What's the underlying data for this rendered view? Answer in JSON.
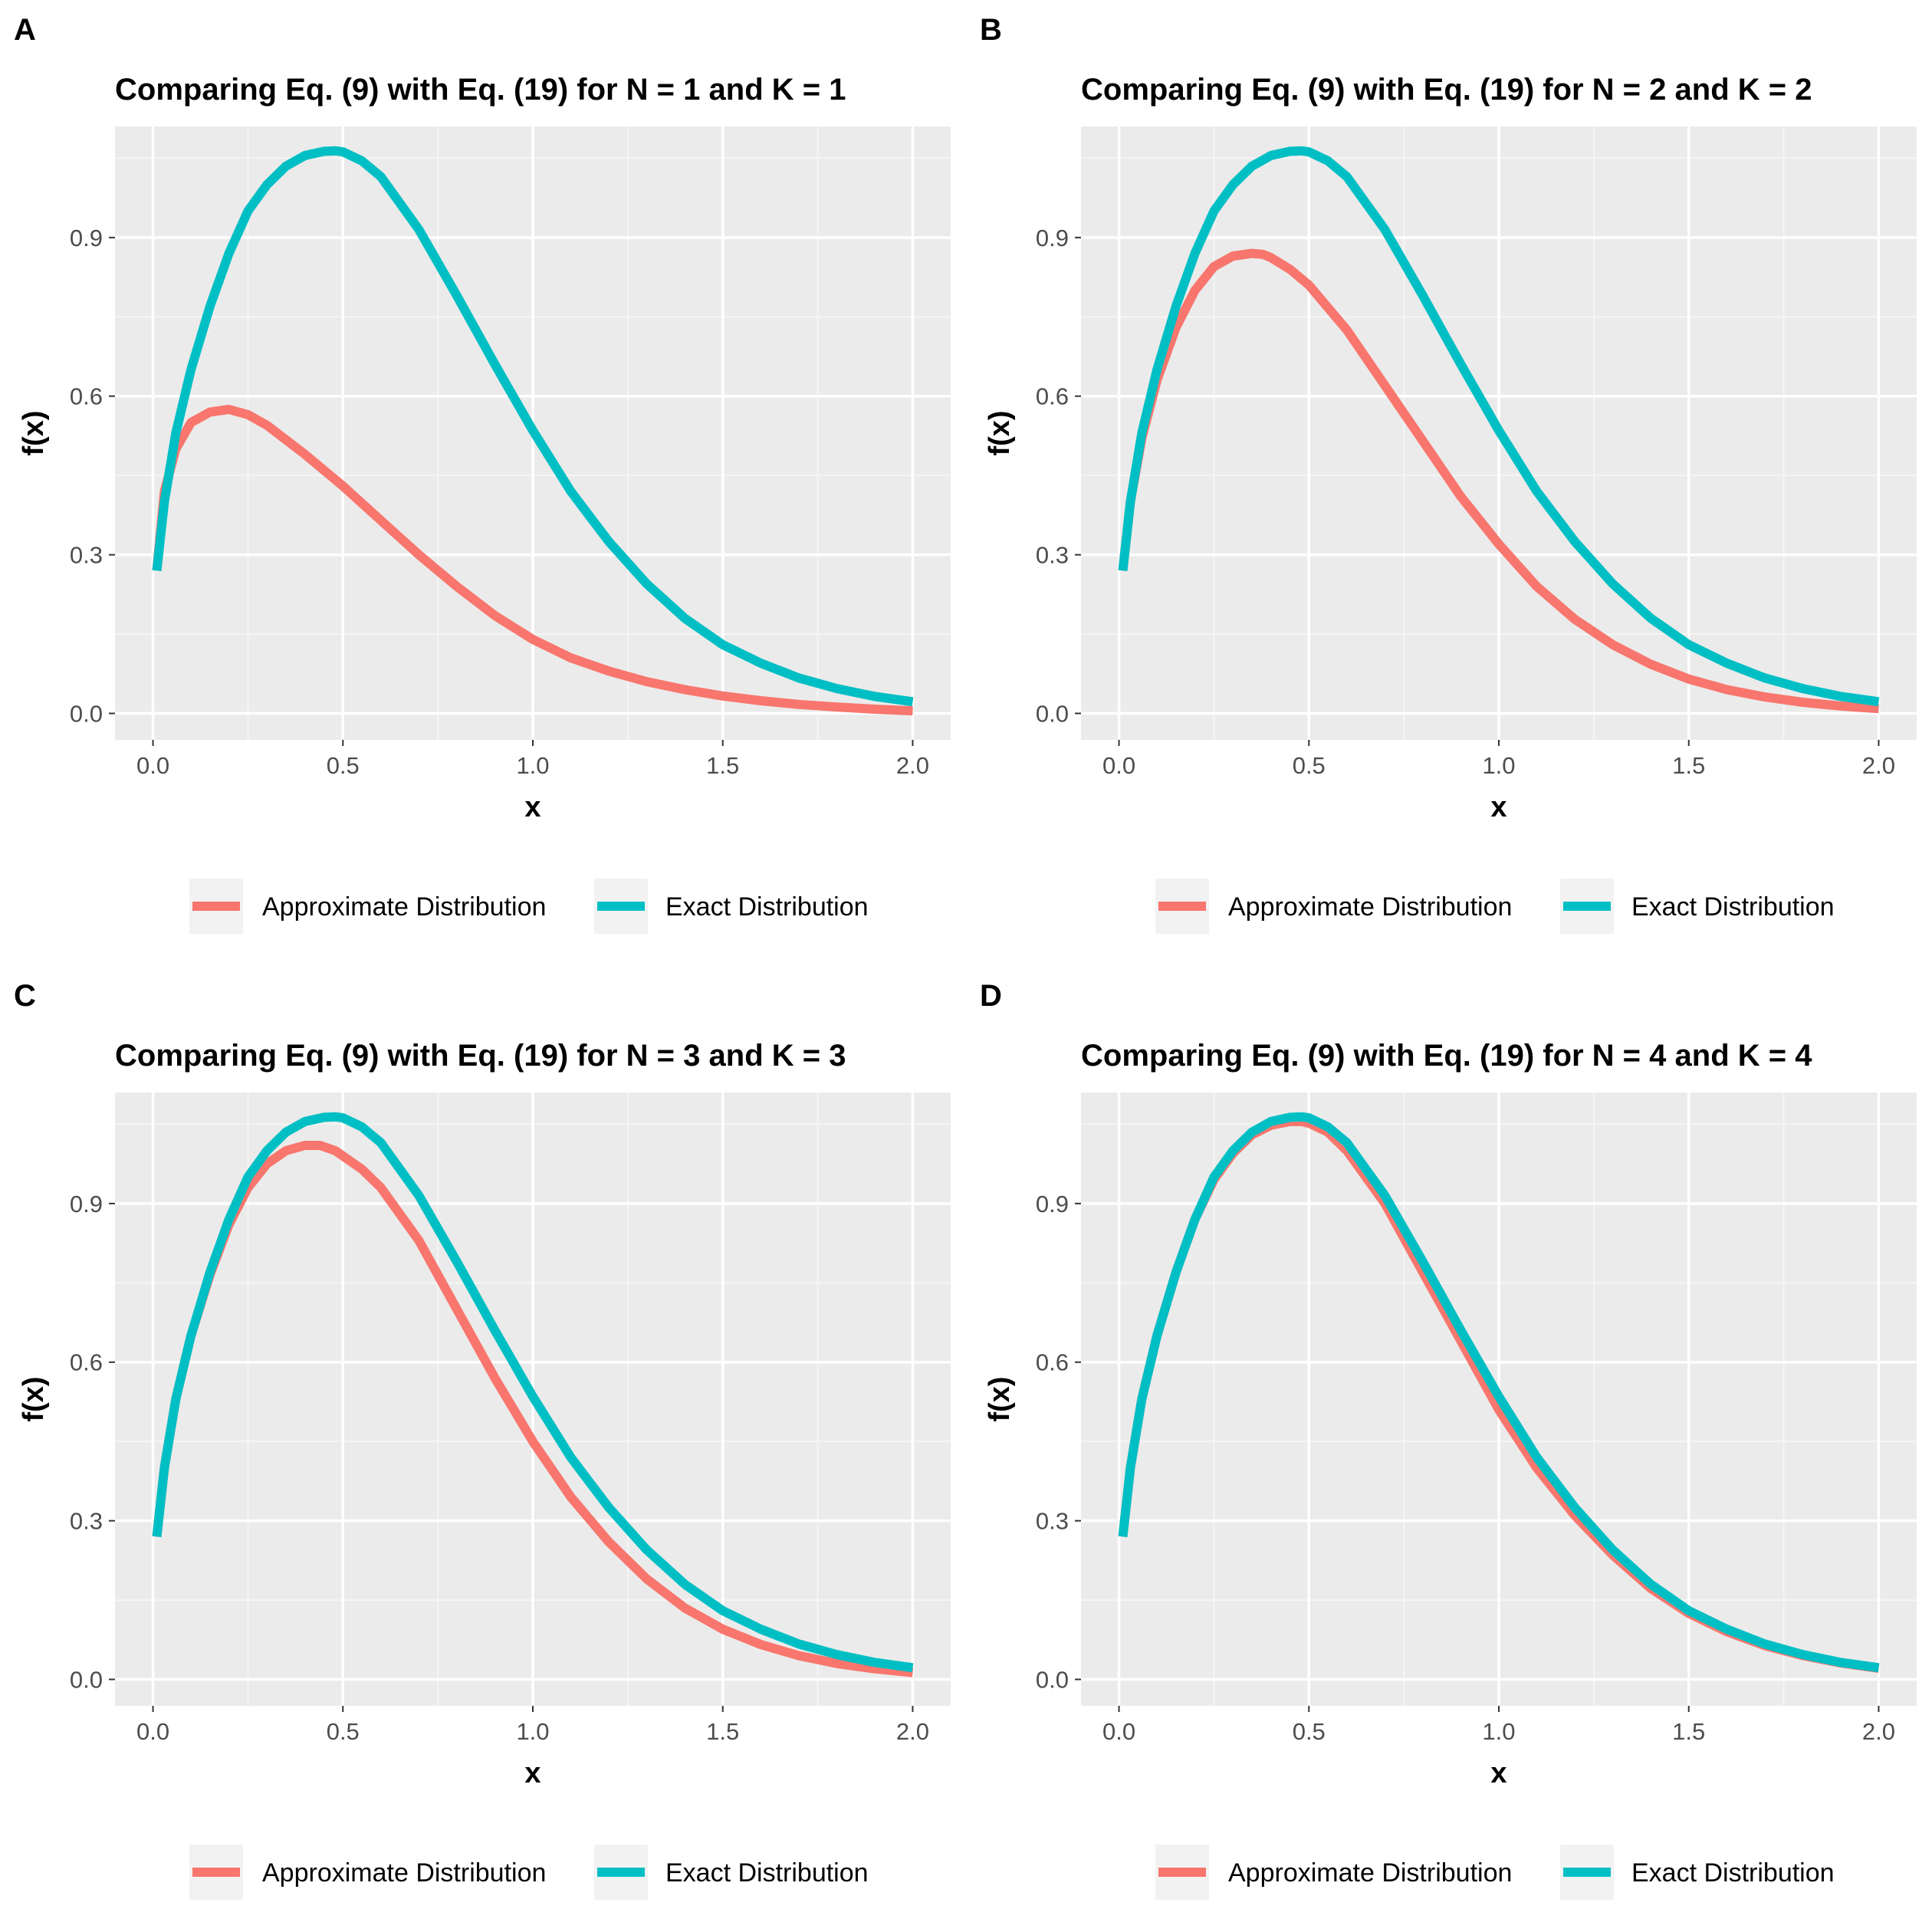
{
  "colors": {
    "approximate": "#F8766D",
    "exact": "#00BFC4",
    "panel_bg": "#EBEBEB",
    "grid_major": "#FFFFFF",
    "grid_minor": "#F5F5F5",
    "tick": "#333333",
    "tick_text": "#4D4D4D"
  },
  "legend": {
    "items": [
      {
        "key": "approximate",
        "label": "Approximate Distribution"
      },
      {
        "key": "exact",
        "label": "Exact Distribution"
      }
    ],
    "position": "bottom"
  },
  "chart_data": [
    {
      "panel": "A",
      "type": "line",
      "title": "Comparing Eq. (9) with Eq. (19) for N = 1 and K = 1",
      "xlabel": "x",
      "ylabel": "f(x)",
      "xlim": [
        -0.1,
        2.1
      ],
      "ylim": [
        -0.05,
        1.11
      ],
      "xticks": [
        0.0,
        0.5,
        1.0,
        1.5,
        2.0
      ],
      "xtick_labels": [
        "0.0",
        "0.5",
        "1.0",
        "1.5",
        "2.0"
      ],
      "yticks": [
        0.0,
        0.3,
        0.6,
        0.9
      ],
      "ytick_labels": [
        "0.0",
        "0.3",
        "0.6",
        "0.9"
      ],
      "grid": true,
      "series": [
        {
          "key": "approximate",
          "x": [
            0.01,
            0.03,
            0.06,
            0.1,
            0.15,
            0.2,
            0.25,
            0.3,
            0.4,
            0.5,
            0.6,
            0.7,
            0.8,
            0.9,
            1.0,
            1.1,
            1.2,
            1.3,
            1.4,
            1.5,
            1.6,
            1.7,
            1.8,
            1.9,
            2.0
          ],
          "y": [
            0.27,
            0.42,
            0.5,
            0.55,
            0.57,
            0.575,
            0.565,
            0.545,
            0.49,
            0.43,
            0.365,
            0.3,
            0.24,
            0.185,
            0.14,
            0.105,
            0.08,
            0.06,
            0.045,
            0.033,
            0.024,
            0.017,
            0.012,
            0.008,
            0.005
          ]
        },
        {
          "key": "exact",
          "x": [
            0.01,
            0.03,
            0.06,
            0.1,
            0.15,
            0.2,
            0.25,
            0.3,
            0.35,
            0.4,
            0.45,
            0.48,
            0.5,
            0.55,
            0.6,
            0.7,
            0.8,
            0.9,
            1.0,
            1.1,
            1.2,
            1.3,
            1.4,
            1.5,
            1.6,
            1.7,
            1.8,
            1.9,
            2.0
          ],
          "y": [
            0.27,
            0.4,
            0.53,
            0.65,
            0.77,
            0.87,
            0.95,
            1.0,
            1.035,
            1.055,
            1.063,
            1.064,
            1.062,
            1.045,
            1.015,
            0.915,
            0.79,
            0.66,
            0.535,
            0.42,
            0.325,
            0.245,
            0.18,
            0.13,
            0.095,
            0.067,
            0.047,
            0.032,
            0.022
          ]
        }
      ]
    },
    {
      "panel": "B",
      "type": "line",
      "title": "Comparing Eq. (9) with Eq. (19) for N = 2 and K = 2",
      "xlabel": "x",
      "ylabel": "f(x)",
      "xlim": [
        -0.1,
        2.1
      ],
      "ylim": [
        -0.05,
        1.11
      ],
      "xticks": [
        0.0,
        0.5,
        1.0,
        1.5,
        2.0
      ],
      "xtick_labels": [
        "0.0",
        "0.5",
        "1.0",
        "1.5",
        "2.0"
      ],
      "yticks": [
        0.0,
        0.3,
        0.6,
        0.9
      ],
      "ytick_labels": [
        "0.0",
        "0.3",
        "0.6",
        "0.9"
      ],
      "grid": true,
      "series": [
        {
          "key": "approximate",
          "x": [
            0.01,
            0.03,
            0.06,
            0.1,
            0.15,
            0.2,
            0.25,
            0.3,
            0.35,
            0.38,
            0.4,
            0.45,
            0.5,
            0.6,
            0.7,
            0.8,
            0.9,
            1.0,
            1.1,
            1.2,
            1.3,
            1.4,
            1.5,
            1.6,
            1.7,
            1.8,
            1.9,
            2.0
          ],
          "y": [
            0.27,
            0.4,
            0.52,
            0.63,
            0.73,
            0.8,
            0.845,
            0.865,
            0.87,
            0.868,
            0.862,
            0.84,
            0.81,
            0.725,
            0.62,
            0.515,
            0.41,
            0.32,
            0.24,
            0.178,
            0.13,
            0.093,
            0.065,
            0.045,
            0.031,
            0.021,
            0.014,
            0.009
          ]
        },
        {
          "key": "exact",
          "x": [
            0.01,
            0.03,
            0.06,
            0.1,
            0.15,
            0.2,
            0.25,
            0.3,
            0.35,
            0.4,
            0.45,
            0.48,
            0.5,
            0.55,
            0.6,
            0.7,
            0.8,
            0.9,
            1.0,
            1.1,
            1.2,
            1.3,
            1.4,
            1.5,
            1.6,
            1.7,
            1.8,
            1.9,
            2.0
          ],
          "y": [
            0.27,
            0.4,
            0.53,
            0.65,
            0.77,
            0.87,
            0.95,
            1.0,
            1.035,
            1.055,
            1.063,
            1.064,
            1.062,
            1.045,
            1.015,
            0.915,
            0.79,
            0.66,
            0.535,
            0.42,
            0.325,
            0.245,
            0.18,
            0.13,
            0.095,
            0.067,
            0.047,
            0.032,
            0.022
          ]
        }
      ]
    },
    {
      "panel": "C",
      "type": "line",
      "title": "Comparing Eq. (9) with Eq. (19) for N = 3 and K = 3",
      "xlabel": "x",
      "ylabel": "f(x)",
      "xlim": [
        -0.1,
        2.1
      ],
      "ylim": [
        -0.05,
        1.11
      ],
      "xticks": [
        0.0,
        0.5,
        1.0,
        1.5,
        2.0
      ],
      "xtick_labels": [
        "0.0",
        "0.5",
        "1.0",
        "1.5",
        "2.0"
      ],
      "yticks": [
        0.0,
        0.3,
        0.6,
        0.9
      ],
      "ytick_labels": [
        "0.0",
        "0.3",
        "0.6",
        "0.9"
      ],
      "grid": true,
      "series": [
        {
          "key": "approximate",
          "x": [
            0.01,
            0.03,
            0.06,
            0.1,
            0.15,
            0.2,
            0.25,
            0.3,
            0.35,
            0.4,
            0.44,
            0.48,
            0.5,
            0.55,
            0.6,
            0.7,
            0.8,
            0.9,
            1.0,
            1.1,
            1.2,
            1.3,
            1.4,
            1.5,
            1.6,
            1.7,
            1.8,
            1.9,
            2.0
          ],
          "y": [
            0.27,
            0.4,
            0.53,
            0.65,
            0.765,
            0.86,
            0.93,
            0.975,
            1.0,
            1.01,
            1.01,
            1.0,
            0.99,
            0.965,
            0.93,
            0.83,
            0.7,
            0.57,
            0.45,
            0.345,
            0.26,
            0.19,
            0.135,
            0.095,
            0.066,
            0.045,
            0.03,
            0.02,
            0.013
          ]
        },
        {
          "key": "exact",
          "x": [
            0.01,
            0.03,
            0.06,
            0.1,
            0.15,
            0.2,
            0.25,
            0.3,
            0.35,
            0.4,
            0.45,
            0.48,
            0.5,
            0.55,
            0.6,
            0.7,
            0.8,
            0.9,
            1.0,
            1.1,
            1.2,
            1.3,
            1.4,
            1.5,
            1.6,
            1.7,
            1.8,
            1.9,
            2.0
          ],
          "y": [
            0.27,
            0.4,
            0.53,
            0.65,
            0.77,
            0.87,
            0.95,
            1.0,
            1.035,
            1.055,
            1.063,
            1.064,
            1.062,
            1.045,
            1.015,
            0.915,
            0.79,
            0.66,
            0.535,
            0.42,
            0.325,
            0.245,
            0.18,
            0.13,
            0.095,
            0.067,
            0.047,
            0.032,
            0.022
          ]
        }
      ]
    },
    {
      "panel": "D",
      "type": "line",
      "title": "Comparing Eq. (9) with Eq. (19) for N = 4 and K = 4",
      "xlabel": "x",
      "ylabel": "f(x)",
      "xlim": [
        -0.1,
        2.1
      ],
      "ylim": [
        -0.05,
        1.11
      ],
      "xticks": [
        0.0,
        0.5,
        1.0,
        1.5,
        2.0
      ],
      "xtick_labels": [
        "0.0",
        "0.5",
        "1.0",
        "1.5",
        "2.0"
      ],
      "yticks": [
        0.0,
        0.3,
        0.6,
        0.9
      ],
      "ytick_labels": [
        "0.0",
        "0.3",
        "0.6",
        "0.9"
      ],
      "grid": true,
      "series": [
        {
          "key": "approximate",
          "x": [
            0.01,
            0.03,
            0.06,
            0.1,
            0.15,
            0.2,
            0.25,
            0.3,
            0.35,
            0.4,
            0.45,
            0.48,
            0.5,
            0.55,
            0.6,
            0.7,
            0.8,
            0.9,
            1.0,
            1.1,
            1.2,
            1.3,
            1.4,
            1.5,
            1.6,
            1.7,
            1.8,
            1.9,
            2.0
          ],
          "y": [
            0.27,
            0.4,
            0.53,
            0.65,
            0.77,
            0.87,
            0.945,
            0.995,
            1.03,
            1.048,
            1.055,
            1.055,
            1.052,
            1.035,
            1.0,
            0.9,
            0.77,
            0.64,
            0.51,
            0.4,
            0.31,
            0.235,
            0.172,
            0.125,
            0.09,
            0.064,
            0.045,
            0.031,
            0.021
          ]
        },
        {
          "key": "exact",
          "x": [
            0.01,
            0.03,
            0.06,
            0.1,
            0.15,
            0.2,
            0.25,
            0.3,
            0.35,
            0.4,
            0.45,
            0.48,
            0.5,
            0.55,
            0.6,
            0.7,
            0.8,
            0.9,
            1.0,
            1.1,
            1.2,
            1.3,
            1.4,
            1.5,
            1.6,
            1.7,
            1.8,
            1.9,
            2.0
          ],
          "y": [
            0.27,
            0.4,
            0.53,
            0.65,
            0.77,
            0.87,
            0.95,
            1.0,
            1.035,
            1.055,
            1.063,
            1.064,
            1.062,
            1.045,
            1.015,
            0.915,
            0.79,
            0.66,
            0.535,
            0.42,
            0.325,
            0.245,
            0.18,
            0.13,
            0.095,
            0.067,
            0.047,
            0.032,
            0.022
          ]
        }
      ]
    }
  ]
}
